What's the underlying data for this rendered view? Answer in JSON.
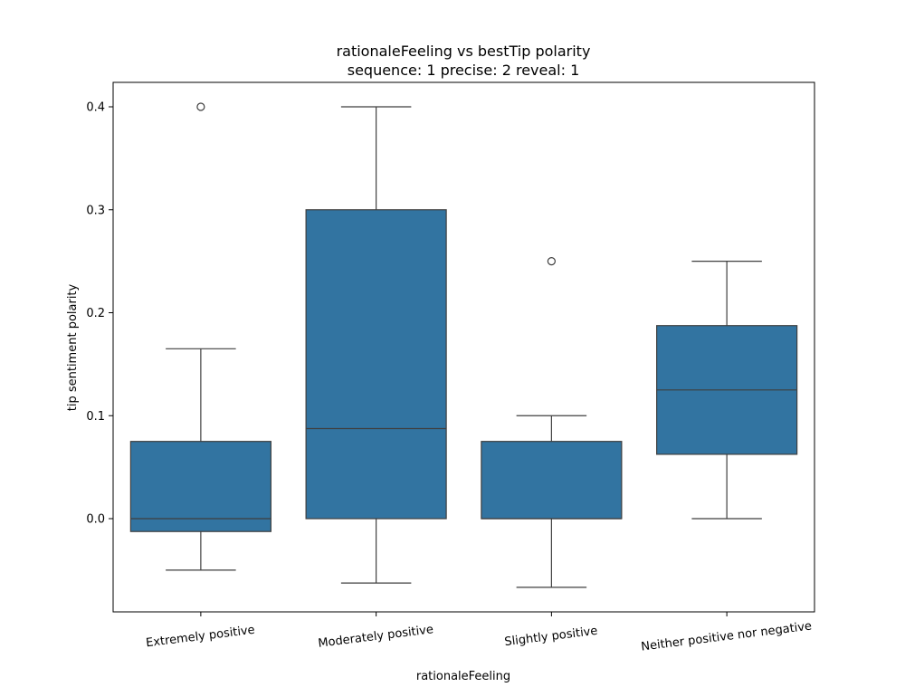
{
  "chart_data": {
    "type": "box",
    "title": "rationaleFeeling vs bestTip polarity",
    "subtitle": "sequence: 1  precise: 2  reveal: 1",
    "xlabel": "rationaleFeeling",
    "ylabel": "tip sentiment polarity",
    "ylim": [
      -0.09,
      0.425
    ],
    "yticks": [
      "0.0",
      "0.1",
      "0.2",
      "0.3",
      "0.4"
    ],
    "grid": false,
    "box_color": "#3274a1",
    "line_color": "#3f3f3f",
    "categories": [
      "Extremely positive",
      "Moderately positive",
      "Slightly positive",
      "Neither positive nor negative"
    ],
    "boxes": [
      {
        "whisker_low": -0.05,
        "q1": -0.0125,
        "median": 0.0,
        "q3": 0.075,
        "whisker_high": 0.165,
        "outliers": [
          0.4
        ]
      },
      {
        "whisker_low": -0.0625,
        "q1": 0.0,
        "median": 0.0875,
        "q3": 0.3,
        "whisker_high": 0.4,
        "outliers": []
      },
      {
        "whisker_low": -0.0667,
        "q1": 0.0,
        "median": 0.0,
        "q3": 0.075,
        "whisker_high": 0.1,
        "outliers": [
          0.25
        ]
      },
      {
        "whisker_low": 0.0,
        "q1": 0.0625,
        "median": 0.125,
        "q3": 0.1875,
        "whisker_high": 0.25,
        "outliers": []
      }
    ]
  }
}
